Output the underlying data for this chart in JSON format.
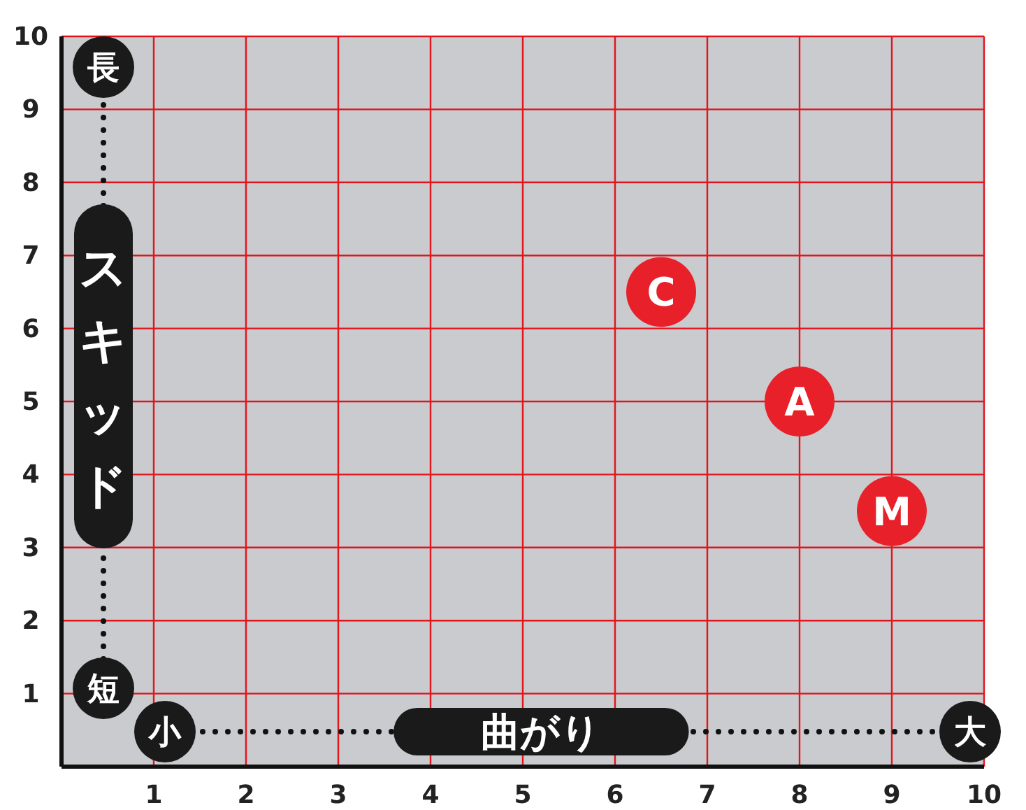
{
  "chart_data": {
    "type": "scatter",
    "xlabel": "曲がり",
    "ylabel": "スキッド",
    "annotations": [
      "長",
      "短",
      "小",
      "大"
    ],
    "xlim": [
      0,
      10
    ],
    "ylim": [
      0,
      10
    ],
    "xticks": [
      1,
      2,
      3,
      4,
      5,
      6,
      7,
      8,
      9,
      10
    ],
    "yticks": [
      1,
      2,
      3,
      4,
      5,
      6,
      7,
      8,
      9,
      10
    ],
    "grid": true,
    "marker": "circle",
    "series": [
      {
        "name": "C",
        "color": "#e8202a",
        "x": [
          6.5
        ],
        "values": [
          6.5
        ]
      },
      {
        "name": "A",
        "color": "#e8202a",
        "x": [
          8
        ],
        "values": [
          5
        ]
      },
      {
        "name": "M",
        "color": "#e8202a",
        "x": [
          9
        ],
        "values": [
          3.5
        ]
      }
    ]
  }
}
